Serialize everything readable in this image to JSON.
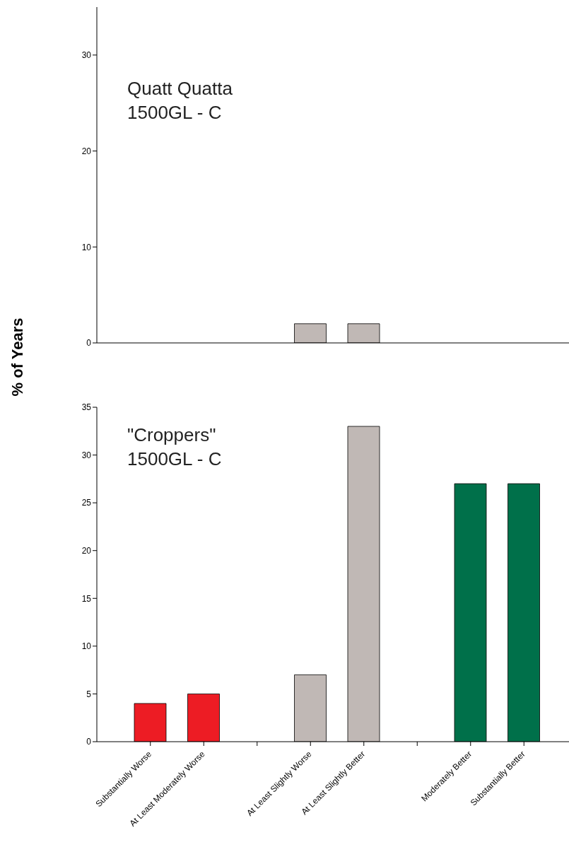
{
  "chart_data": [
    {
      "type": "bar",
      "ylabel": "% of Years",
      "annotations": [
        "Quatt Quatta\n1500GL - C"
      ],
      "categories": [
        null,
        null,
        null,
        null,
        null,
        null,
        null,
        null
      ],
      "values": [
        null,
        null,
        null,
        2,
        2,
        null,
        null,
        null
      ],
      "colors": [
        "#ed1c24",
        "#ed1c24",
        "#c0b8b5",
        "#c0b8b5",
        "#c0b8b5",
        "#c0b8b5",
        "#00704a",
        "#00704a"
      ],
      "ylim": [
        0,
        35
      ],
      "yticks": [
        0,
        10,
        20,
        30
      ],
      "tick_labels": "y"
    },
    {
      "type": "bar",
      "annotations": [
        "\"Croppers\"\n1500GL - C"
      ],
      "categories": [
        "Substantially Worse",
        "At Least Moderately Worse",
        null,
        "At Least Slightly Worse",
        "At Least Slightly Better",
        null,
        "Moderately Better",
        "Substantially Better"
      ],
      "values": [
        4,
        5,
        null,
        7,
        33,
        null,
        27,
        27
      ],
      "colors": [
        "#ed1c24",
        "#ed1c24",
        "#c0b8b5",
        "#c0b8b5",
        "#c0b8b5",
        "#c0b8b5",
        "#00704a",
        "#00704a"
      ],
      "ylim": [
        0,
        35
      ],
      "yticks": [
        0,
        5,
        10,
        15,
        20,
        25,
        30,
        35
      ]
    }
  ]
}
